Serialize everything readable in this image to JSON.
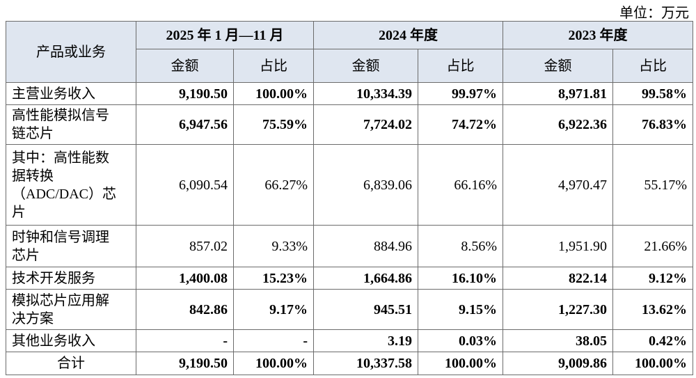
{
  "unit": "单位：万元",
  "header": {
    "row_label": "产品或业务",
    "periods": [
      {
        "name": "2025 年 1 月—11 月",
        "columns": [
          "金额",
          "占比"
        ]
      },
      {
        "name": "2024 年度",
        "columns": [
          "金额",
          "占比"
        ]
      },
      {
        "name": "2023 年度",
        "columns": [
          "金额",
          "占比"
        ]
      }
    ]
  },
  "rows": [
    {
      "label": [
        "主营业务收入"
      ],
      "bold": true,
      "cells": [
        "9,190.50",
        "100.00%",
        "10,334.39",
        "99.97%",
        "8,971.81",
        "99.58%"
      ]
    },
    {
      "label": [
        "高性能模拟信号",
        "链芯片"
      ],
      "bold": true,
      "cells": [
        "6,947.56",
        "75.59%",
        "7,724.02",
        "74.72%",
        "6,922.36",
        "76.83%"
      ]
    },
    {
      "label": [
        "其中：高性能数",
        "据转换",
        "（ADC/DAC）芯",
        "片"
      ],
      "bold": false,
      "cells": [
        "6,090.54",
        "66.27%",
        "6,839.06",
        "66.16%",
        "4,970.47",
        "55.17%"
      ]
    },
    {
      "label": [
        "时钟和信号调理",
        "芯片"
      ],
      "bold": false,
      "cells": [
        "857.02",
        "9.33%",
        "884.96",
        "8.56%",
        "1,951.90",
        "21.66%"
      ]
    },
    {
      "label": [
        "技术开发服务"
      ],
      "bold": true,
      "cells": [
        "1,400.08",
        "15.23%",
        "1,664.86",
        "16.10%",
        "822.14",
        "9.12%"
      ]
    },
    {
      "label": [
        "模拟芯片应用解",
        "决方案"
      ],
      "bold": true,
      "cells": [
        "842.86",
        "9.17%",
        "945.51",
        "9.15%",
        "1,227.30",
        "13.62%"
      ]
    },
    {
      "label": [
        "其他业务收入"
      ],
      "bold": true,
      "cells": [
        "-",
        "-",
        "3.19",
        "0.03%",
        "38.05",
        "0.42%"
      ]
    }
  ],
  "total": {
    "label": "合计",
    "cells": [
      "9,190.50",
      "100.00%",
      "10,337.58",
      "100.00%",
      "9,009.86",
      "100.00%"
    ]
  }
}
